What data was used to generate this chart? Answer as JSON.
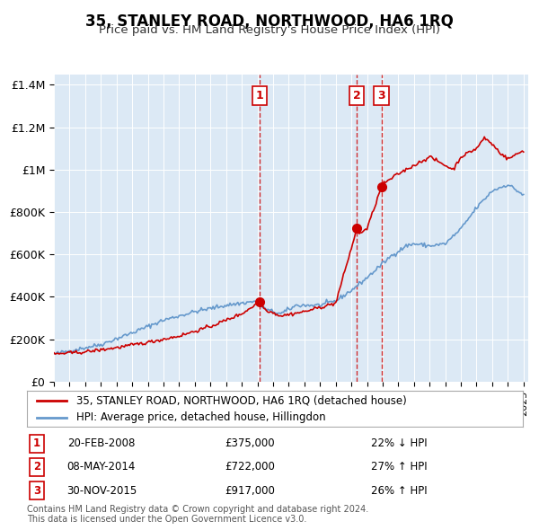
{
  "title": "35, STANLEY ROAD, NORTHWOOD, HA6 1RQ",
  "subtitle": "Price paid vs. HM Land Registry's House Price Index (HPI)",
  "legend_line1": "35, STANLEY ROAD, NORTHWOOD, HA6 1RQ (detached house)",
  "legend_line2": "HPI: Average price, detached house, Hillingdon",
  "house_color": "#cc0000",
  "hpi_color": "#6699cc",
  "background_color": "#dce9f5",
  "transactions": [
    {
      "label": "1",
      "date": "20-FEB-2008",
      "price": 375000,
      "pct": "22%",
      "dir": "↓",
      "x_year": 2008.13
    },
    {
      "label": "2",
      "date": "08-MAY-2014",
      "price": 722000,
      "pct": "27%",
      "dir": "↑",
      "x_year": 2014.36
    },
    {
      "label": "3",
      "date": "30-NOV-2015",
      "price": 917000,
      "pct": "26%",
      "dir": "↑",
      "x_year": 2015.92
    }
  ],
  "footer": "Contains HM Land Registry data © Crown copyright and database right 2024.\nThis data is licensed under the Open Government Licence v3.0.",
  "ylim": [
    0,
    1450000
  ],
  "yticks": [
    0,
    200000,
    400000,
    600000,
    800000,
    1000000,
    1200000,
    1400000
  ],
  "ytick_labels": [
    "£0",
    "£200K",
    "£400K",
    "£600K",
    "£800K",
    "£1M",
    "£1.2M",
    "£1.4M"
  ],
  "xlim_start": 1995.0,
  "xlim_end": 2025.3
}
